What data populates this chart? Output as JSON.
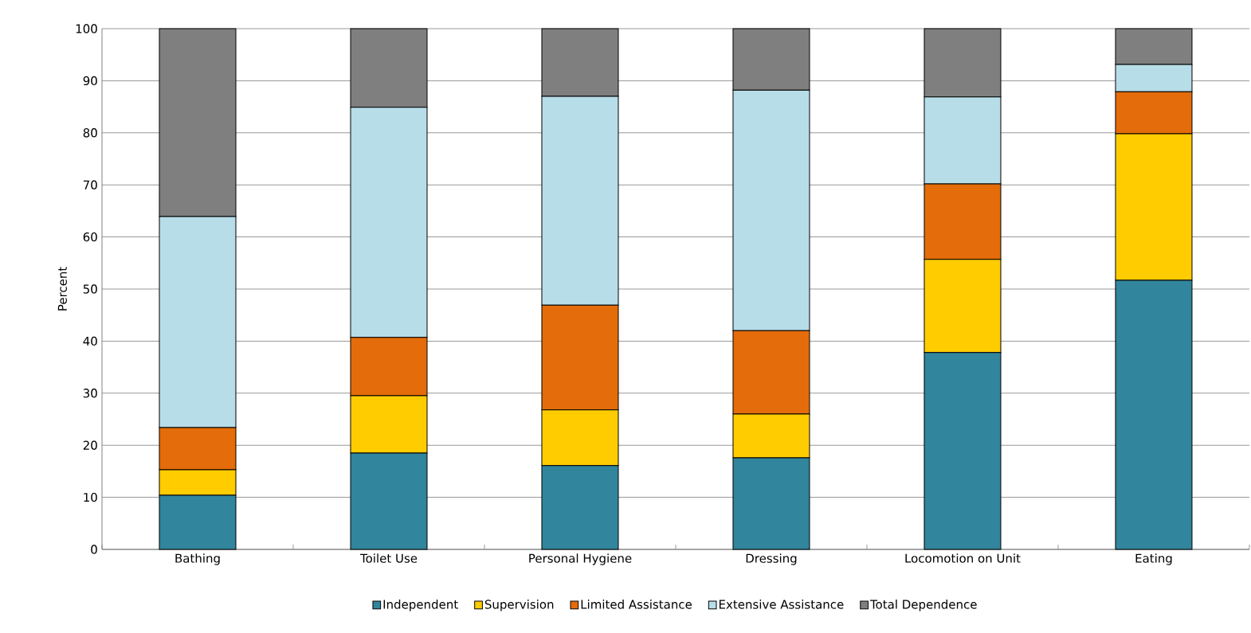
{
  "chart_data": {
    "type": "bar",
    "stacked": true,
    "ylabel": "Percent",
    "categories": [
      "Bathing",
      "Toilet Use",
      "Personal Hygiene",
      "Dressing",
      "Locomotion on Unit",
      "Eating"
    ],
    "series": [
      {
        "name": "Independent",
        "color": "#31859c",
        "values": [
          10.4,
          18.5,
          16.1,
          17.6,
          37.8,
          51.7
        ]
      },
      {
        "name": "Supervision",
        "color": "#ffcc00",
        "values": [
          4.9,
          11.0,
          10.7,
          8.4,
          17.9,
          28.1
        ]
      },
      {
        "name": "Limited Assistance",
        "color": "#e46c0a",
        "values": [
          8.1,
          11.2,
          20.1,
          16.0,
          14.5,
          8.1
        ]
      },
      {
        "name": "Extensive Assistance",
        "color": "#b7dde8",
        "values": [
          40.5,
          44.2,
          40.1,
          46.2,
          16.7,
          5.2
        ]
      },
      {
        "name": "Total Dependence",
        "color": "#7f7f7f",
        "values": [
          36.1,
          15.1,
          13.0,
          11.8,
          13.1,
          6.9
        ]
      }
    ],
    "ylim": [
      0,
      100
    ],
    "yticks": [
      0,
      10,
      20,
      30,
      40,
      50,
      60,
      70,
      80,
      90,
      100
    ],
    "grid": "y",
    "legend": "bottom"
  }
}
